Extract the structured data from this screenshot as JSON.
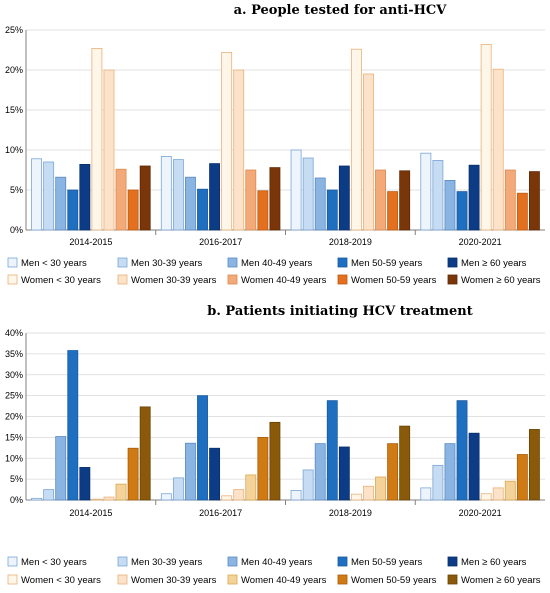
{
  "chart_data": [
    {
      "type": "bar",
      "title": "a.    People tested for anti-HCV",
      "categories": [
        "2014-2015",
        "2016-2017",
        "2018-2019",
        "2020-2021"
      ],
      "ylim": [
        0,
        25
      ],
      "yticks": [
        "0%",
        "5%",
        "10%",
        "15%",
        "20%",
        "25%"
      ],
      "grid": true,
      "legend_position": "bottom",
      "series": [
        {
          "name": "Men < 30 years",
          "color": "#eef4fc",
          "stroke": "#7aa6d6",
          "values": [
            8.9,
            9.2,
            10.0,
            9.6
          ]
        },
        {
          "name": "Men 30-39 years",
          "color": "#c6dcf2",
          "stroke": "#7aa6d6",
          "values": [
            8.5,
            8.8,
            9.0,
            8.7
          ]
        },
        {
          "name": "Men 40-49 years",
          "color": "#8ab4e2",
          "stroke": "#5a8ac4",
          "values": [
            6.6,
            6.6,
            6.5,
            6.2
          ]
        },
        {
          "name": "Men 50-59 years",
          "color": "#1f6fc1",
          "stroke": "#1a5aa0",
          "values": [
            5.0,
            5.1,
            5.0,
            4.8
          ]
        },
        {
          "name": "Men ≥ 60 years",
          "color": "#0d3c86",
          "stroke": "#0a2f6a",
          "values": [
            8.2,
            8.3,
            8.0,
            8.1
          ]
        },
        {
          "name": "Women < 30 years",
          "color": "#fff6ea",
          "stroke": "#e8b27a",
          "values": [
            22.7,
            22.2,
            22.6,
            23.2
          ]
        },
        {
          "name": "Women 30-39 years",
          "color": "#fce2c8",
          "stroke": "#e8b27a",
          "values": [
            20.0,
            20.0,
            19.5,
            20.1
          ]
        },
        {
          "name": "Women 40-49 years",
          "color": "#f4a978",
          "stroke": "#d98a50",
          "values": [
            7.6,
            7.5,
            7.5,
            7.5
          ]
        },
        {
          "name": "Women 50-59 years",
          "color": "#e2701e",
          "stroke": "#c05a10",
          "values": [
            5.0,
            4.9,
            4.8,
            4.6
          ]
        },
        {
          "name": "Women ≥ 60 years",
          "color": "#7a3608",
          "stroke": "#5e2906",
          "values": [
            8.0,
            7.8,
            7.4,
            7.3
          ]
        }
      ]
    },
    {
      "type": "bar",
      "title": "b.    Patients initiating HCV treatment",
      "categories": [
        "2014-2015",
        "2016-2017",
        "2018-2019",
        "2020-2021"
      ],
      "ylim": [
        0,
        40
      ],
      "yticks": [
        "0%",
        "5%",
        "10%",
        "15%",
        "20%",
        "25%",
        "30%",
        "35%",
        "40%"
      ],
      "grid": true,
      "legend_position": "bottom",
      "series": [
        {
          "name": "Men < 30 years",
          "color": "#eef4fc",
          "stroke": "#7aa6d6",
          "values": [
            0.4,
            1.5,
            2.3,
            2.9
          ]
        },
        {
          "name": "Men 30-39 years",
          "color": "#c6dcf2",
          "stroke": "#7aa6d6",
          "values": [
            2.5,
            5.3,
            7.2,
            8.3
          ]
        },
        {
          "name": "Men 40-49 years",
          "color": "#8ab4e2",
          "stroke": "#5a8ac4",
          "values": [
            15.2,
            13.6,
            13.5,
            13.5
          ]
        },
        {
          "name": "Men 50-59 years",
          "color": "#1f6fc1",
          "stroke": "#1a5aa0",
          "values": [
            35.8,
            25.0,
            23.8,
            23.8
          ]
        },
        {
          "name": "Men ≥ 60 years",
          "color": "#0d3c86",
          "stroke": "#0a2f6a",
          "values": [
            7.8,
            12.4,
            12.7,
            16.0
          ]
        },
        {
          "name": "Women < 30 years",
          "color": "#fff6ea",
          "stroke": "#e8b27a",
          "values": [
            0.2,
            1.0,
            1.4,
            1.5
          ]
        },
        {
          "name": "Women 30-39 years",
          "color": "#fce2c8",
          "stroke": "#e8b27a",
          "values": [
            0.7,
            2.5,
            3.3,
            2.9
          ]
        },
        {
          "name": "Women 40-49 years",
          "color": "#f4d39a",
          "stroke": "#d8a850",
          "values": [
            3.8,
            6.0,
            5.5,
            4.5
          ]
        },
        {
          "name": "Women 50-59 years",
          "color": "#d07a14",
          "stroke": "#a85e0c",
          "values": [
            12.4,
            15.0,
            13.5,
            10.9
          ]
        },
        {
          "name": "Women ≥ 60 years",
          "color": "#8a5a0a",
          "stroke": "#684306",
          "values": [
            22.3,
            18.6,
            17.7,
            16.9
          ]
        }
      ]
    }
  ]
}
